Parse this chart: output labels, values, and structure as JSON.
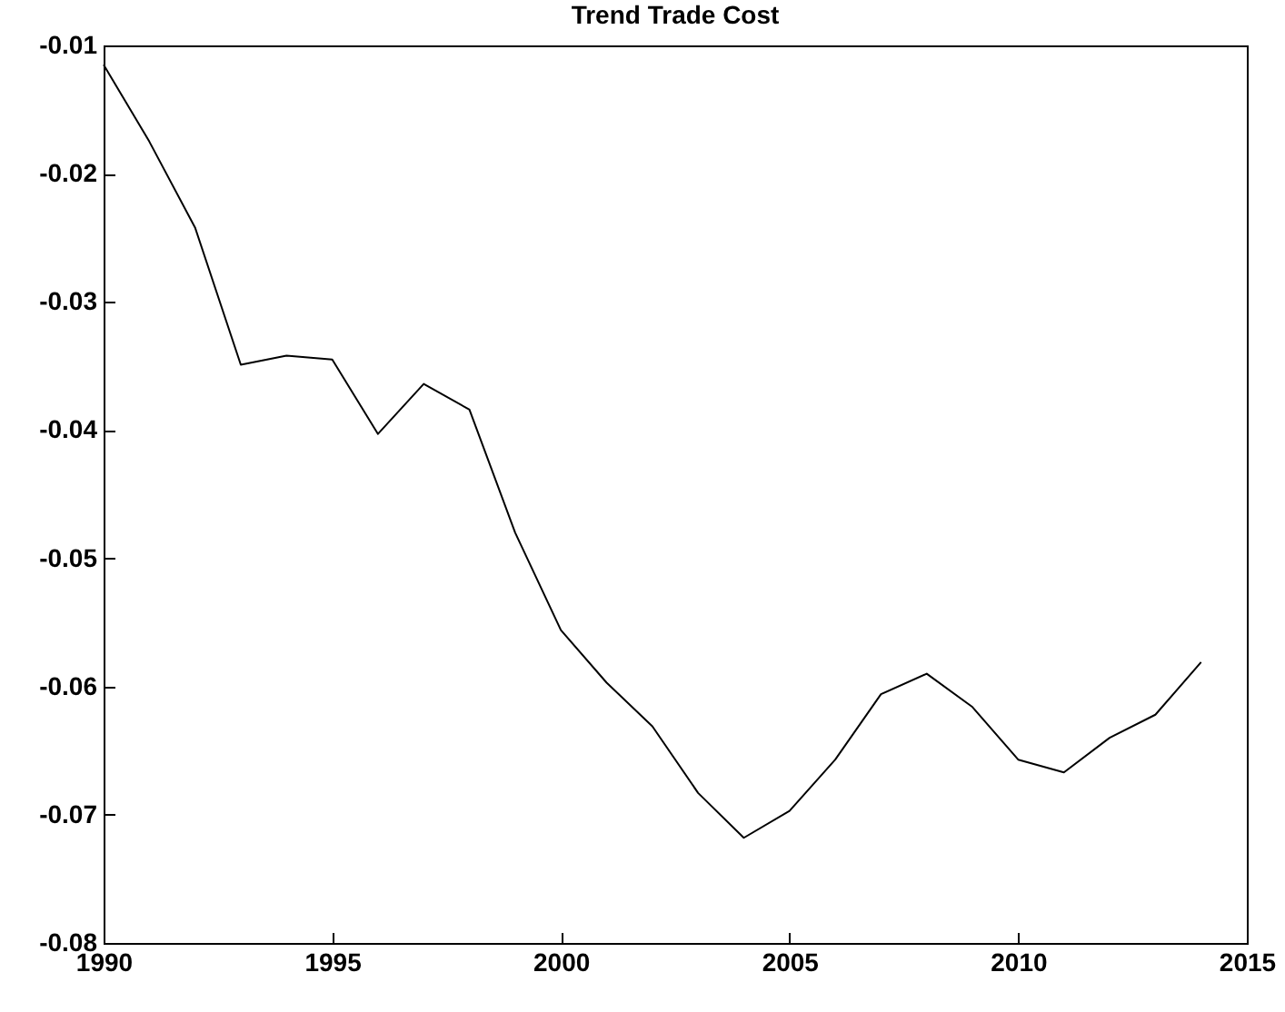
{
  "chart_data": {
    "type": "line",
    "title": "Trend Trade Cost",
    "x": [
      1990,
      1991,
      1992,
      1993,
      1994,
      1995,
      1996,
      1997,
      1998,
      1999,
      2000,
      2001,
      2002,
      2003,
      2004,
      2005,
      2006,
      2007,
      2008,
      2009,
      2010,
      2011,
      2012,
      2013,
      2014
    ],
    "series": [
      {
        "color": "#000000",
        "values": [
          -0.0115,
          -0.0175,
          -0.0242,
          -0.0349,
          -0.0342,
          -0.0345,
          -0.0403,
          -0.0364,
          -0.0384,
          -0.048,
          -0.0556,
          -0.0597,
          -0.0631,
          -0.0683,
          -0.0718,
          -0.0697,
          -0.0657,
          -0.0606,
          -0.059,
          -0.0616,
          -0.0657,
          -0.0667,
          -0.064,
          -0.0622,
          -0.0581
        ]
      }
    ],
    "xlim": [
      1990,
      2015
    ],
    "xticks": [
      1990,
      1995,
      2000,
      2005,
      2010,
      2015
    ],
    "ylim": [
      -0.08,
      -0.01
    ],
    "yticks": [
      -0.08,
      -0.07,
      -0.06,
      -0.05,
      -0.04,
      -0.03,
      -0.02,
      -0.01
    ],
    "grid": false,
    "legend": false,
    "marker": "none",
    "line_style": "solid"
  }
}
